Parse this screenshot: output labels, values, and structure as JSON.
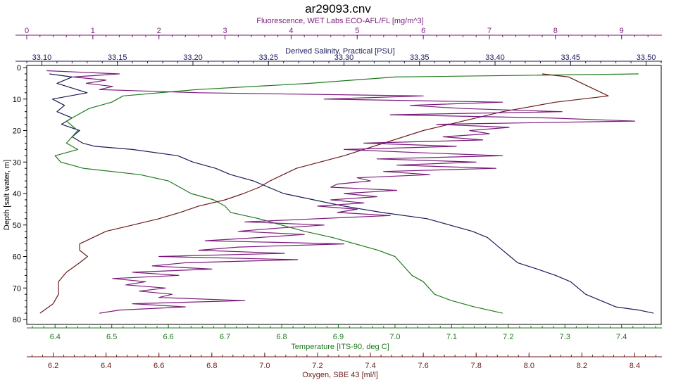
{
  "chart_data": {
    "type": "line",
    "title": "ar29093.cnv",
    "colors": {
      "fluorescence": "#7a1a7a",
      "salinity": "#1a1a5a",
      "temperature": "#1e7a1e",
      "oxygen": "#6a1a1a"
    },
    "axes": {
      "depth": {
        "label": "Depth [salt water, m]",
        "range": [
          0,
          80
        ],
        "ticks": [
          "0",
          "10",
          "20",
          "30",
          "40",
          "50",
          "60",
          "70",
          "80"
        ],
        "inverted": true
      },
      "fluorescence": {
        "label": "Fluorescence, WET Labs ECO-AFL/FL [mg/m^3]",
        "range": [
          0,
          9.6
        ],
        "ticks": [
          "0",
          "1",
          "2",
          "3",
          "4",
          "5",
          "6",
          "7",
          "8",
          "9"
        ]
      },
      "salinity": {
        "label": "Derived Salinity, Practical [PSU]",
        "range": [
          33.09,
          33.51
        ],
        "ticks": [
          "33.10",
          "33.15",
          "33.20",
          "33.25",
          "33.30",
          "33.35",
          "33.40",
          "33.45",
          "33.50"
        ]
      },
      "temperature": {
        "label": "Temperature [ITS-90, deg C]",
        "range": [
          6.35,
          7.47
        ],
        "ticks": [
          "6.4",
          "6.5",
          "6.6",
          "6.7",
          "6.8",
          "6.9",
          "7.0",
          "7.1",
          "7.2",
          "7.3",
          "7.4"
        ]
      },
      "oxygen": {
        "label": "Oxygen, SBE 43 [ml/l]",
        "range": [
          6.1,
          8.5
        ],
        "ticks": [
          "6.2",
          "6.4",
          "6.6",
          "6.8",
          "7.0",
          "7.2",
          "7.4",
          "7.6",
          "7.8",
          "8.0",
          "8.2",
          "8.4"
        ]
      }
    },
    "grid": false,
    "series": [
      {
        "key": "salinity",
        "axis": "salinity",
        "depth": [
          2,
          3,
          5,
          8,
          10,
          12,
          14,
          16,
          18,
          20,
          22,
          24,
          25,
          26,
          28,
          30,
          32,
          34,
          36,
          38,
          40,
          42,
          44,
          46,
          48,
          50,
          52,
          54,
          56,
          58,
          60,
          62,
          64,
          66,
          68,
          70,
          72,
          74,
          76,
          77,
          78
        ],
        "values": [
          33.105,
          33.12,
          33.11,
          33.13,
          33.107,
          33.115,
          33.11,
          33.12,
          33.113,
          33.125,
          33.12,
          33.127,
          33.135,
          33.16,
          33.19,
          33.2,
          33.215,
          33.225,
          33.24,
          33.25,
          33.26,
          33.28,
          33.3,
          33.325,
          33.355,
          33.37,
          33.385,
          33.395,
          33.4,
          33.405,
          33.41,
          33.415,
          33.428,
          33.44,
          33.45,
          33.455,
          33.46,
          33.47,
          33.48,
          33.495,
          33.505
        ]
      },
      {
        "key": "temperature",
        "axis": "temperature",
        "depth": [
          2,
          3,
          5,
          7,
          9,
          11,
          13,
          15,
          17,
          20,
          22,
          24,
          26,
          28,
          30,
          32,
          34,
          36,
          38,
          40,
          42,
          44,
          46,
          48,
          50,
          52,
          54,
          56,
          58,
          60,
          62,
          64,
          66,
          68,
          70,
          72,
          74,
          76,
          78
        ],
        "values": [
          7.43,
          7.0,
          6.85,
          6.65,
          6.52,
          6.5,
          6.46,
          6.44,
          6.42,
          6.44,
          6.43,
          6.42,
          6.44,
          6.4,
          6.41,
          6.45,
          6.55,
          6.6,
          6.62,
          6.64,
          6.68,
          6.7,
          6.71,
          6.76,
          6.8,
          6.84,
          6.89,
          6.93,
          6.97,
          7.0,
          7.01,
          7.02,
          7.03,
          7.05,
          7.06,
          7.07,
          7.1,
          7.14,
          7.19
        ]
      },
      {
        "key": "oxygen",
        "axis": "oxygen",
        "depth": [
          2,
          3,
          5,
          7,
          9,
          11,
          14,
          17,
          20,
          24,
          28,
          32,
          36,
          38,
          40,
          42,
          44,
          46,
          48,
          50,
          52,
          54,
          56,
          58,
          60,
          62,
          65,
          68,
          72,
          75,
          78
        ],
        "values": [
          8.05,
          8.15,
          8.2,
          8.25,
          8.3,
          8.1,
          7.9,
          7.75,
          7.6,
          7.45,
          7.3,
          7.12,
          7.02,
          6.98,
          6.92,
          6.85,
          6.75,
          6.68,
          6.6,
          6.5,
          6.4,
          6.35,
          6.3,
          6.3,
          6.33,
          6.3,
          6.25,
          6.22,
          6.22,
          6.2,
          6.15
        ]
      },
      {
        "key": "fluorescence",
        "axis": "fluorescence",
        "depth": [
          1,
          2,
          3,
          4,
          5,
          6,
          7,
          8,
          9,
          10,
          11,
          12,
          13,
          14,
          15,
          16,
          17,
          18,
          19,
          20,
          21,
          22,
          23,
          24,
          25,
          26,
          27,
          28,
          29,
          30,
          31,
          32,
          33,
          34,
          35,
          36,
          37,
          38,
          39,
          40,
          41,
          42,
          43,
          44,
          45,
          46,
          47,
          48,
          49,
          50,
          51,
          52,
          53,
          54,
          55,
          56,
          57,
          58,
          59,
          60,
          61,
          62,
          63,
          64,
          65,
          66,
          67,
          68,
          69,
          70,
          71,
          72,
          73,
          74,
          75,
          76,
          77,
          78
        ],
        "values": [
          0.3,
          1.4,
          0.7,
          1.2,
          0.9,
          1.3,
          1.1,
          2.6,
          6.0,
          4.5,
          7.2,
          5.8,
          6.6,
          8.1,
          5.5,
          7.9,
          9.2,
          6.2,
          7.3,
          6.7,
          7.0,
          6.3,
          6.9,
          5.1,
          6.5,
          4.8,
          5.9,
          7.2,
          5.3,
          6.8,
          5.6,
          7.1,
          5.4,
          6.1,
          5.0,
          5.2,
          4.7,
          4.6,
          5.6,
          4.8,
          5.3,
          4.6,
          5.1,
          4.4,
          5.0,
          4.7,
          5.5,
          4.4,
          3.3,
          4.5,
          3.8,
          3.2,
          4.2,
          3.5,
          2.7,
          4.8,
          3.2,
          2.6,
          3.9,
          2.0,
          4.1,
          2.4,
          1.9,
          2.8,
          1.6,
          2.3,
          1.3,
          1.8,
          1.5,
          2.1,
          1.7,
          2.2,
          2.0,
          3.3,
          1.6,
          2.4,
          1.4,
          1.1
        ]
      }
    ]
  }
}
